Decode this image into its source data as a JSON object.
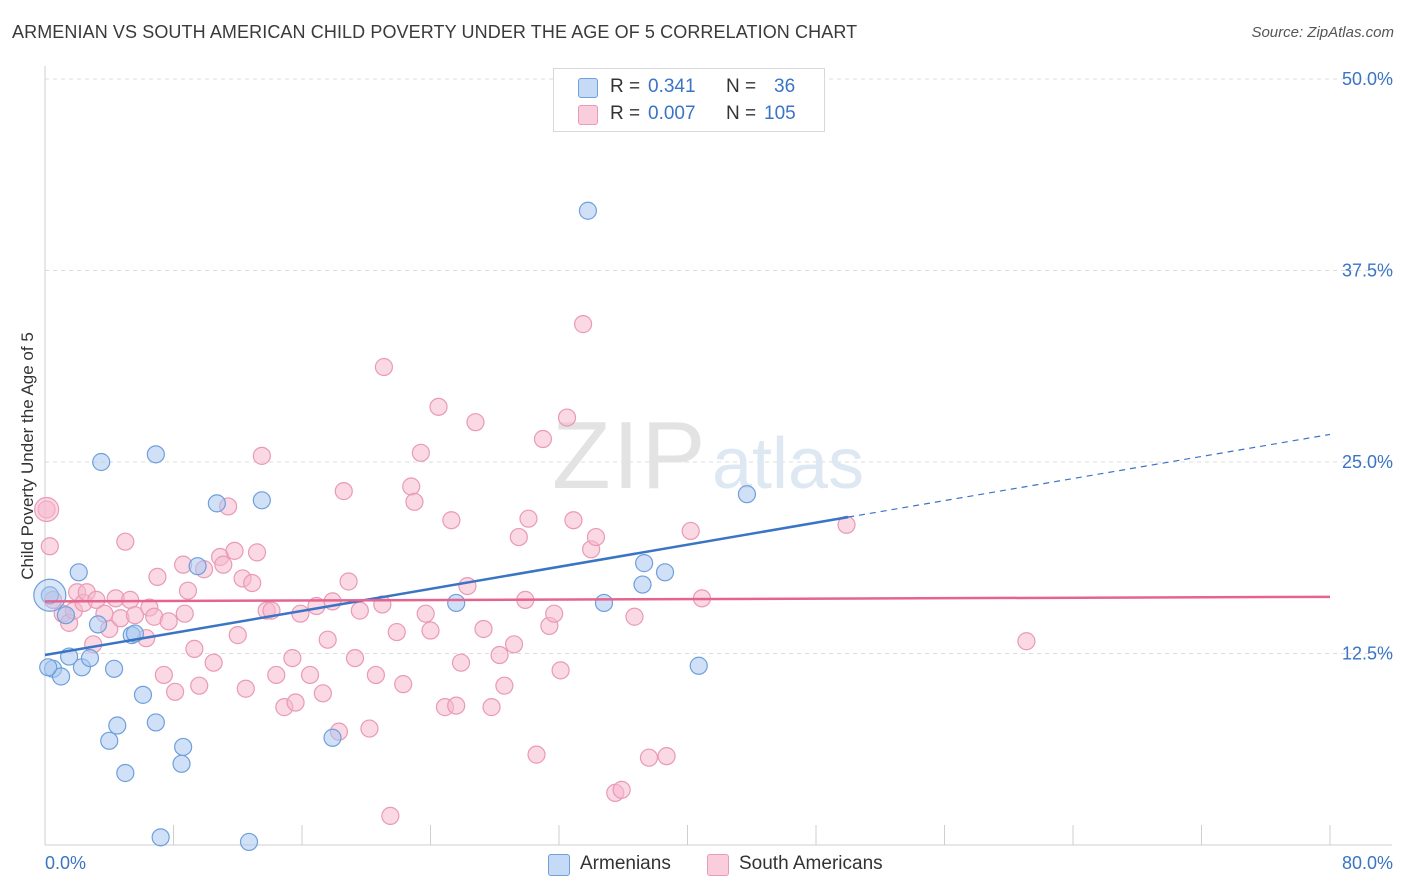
{
  "header": {
    "title": "ARMENIAN VS SOUTH AMERICAN CHILD POVERTY UNDER THE AGE OF 5 CORRELATION CHART",
    "source": "Source: ZipAtlas.com"
  },
  "watermark": {
    "part1": "ZIP",
    "part2": "atlas"
  },
  "legend": {
    "rows": [
      {
        "r_label": "R =",
        "r_value": "0.341",
        "n_label": "N =",
        "n_value": "36",
        "color": "#a9c8f0"
      },
      {
        "r_label": "R =",
        "r_value": "0.007",
        "n_label": "N =",
        "n_value": "105",
        "color": "#f6b8cd"
      }
    ]
  },
  "bottom_legend": [
    {
      "label": "Armenians",
      "color": "#a9c8f0"
    },
    {
      "label": "South Americans",
      "color": "#f6b8cd"
    }
  ],
  "chart_data": {
    "type": "scatter",
    "title": "ARMENIAN VS SOUTH AMERICAN CHILD POVERTY UNDER THE AGE OF 5 CORRELATION CHART",
    "xlabel": "",
    "ylabel": "Child Poverty Under the Age of 5",
    "xlim": [
      0,
      80
    ],
    "ylim": [
      0,
      50
    ],
    "x_tick_labels": [
      "0.0%",
      "80.0%"
    ],
    "y_ticks": [
      12.5,
      25.0,
      37.5,
      50.0
    ],
    "y_tick_labels": [
      "12.5%",
      "25.0%",
      "37.5%",
      "50.0%"
    ],
    "grid": "horizontal dashed",
    "series": [
      {
        "name": "Armenians",
        "color": "#a9c8f0",
        "stroke": "#6f9fdc",
        "points": [
          [
            0.3,
            16.3
          ],
          [
            0.5,
            11.5
          ],
          [
            1.0,
            11.0
          ],
          [
            1.3,
            15.0
          ],
          [
            1.5,
            12.3
          ],
          [
            2.1,
            17.8
          ],
          [
            2.3,
            11.6
          ],
          [
            2.8,
            12.2
          ],
          [
            3.3,
            14.4
          ],
          [
            3.5,
            25.0
          ],
          [
            4.3,
            11.5
          ],
          [
            4.5,
            7.8
          ],
          [
            4.0,
            6.8
          ],
          [
            5.0,
            4.7
          ],
          [
            5.4,
            13.7
          ],
          [
            5.6,
            13.8
          ],
          [
            6.1,
            9.8
          ],
          [
            6.9,
            25.5
          ],
          [
            6.9,
            8.0
          ],
          [
            7.2,
            0.5
          ],
          [
            8.5,
            5.3
          ],
          [
            8.6,
            6.4
          ],
          [
            9.5,
            18.2
          ],
          [
            10.7,
            22.3
          ],
          [
            12.7,
            0.2
          ],
          [
            13.5,
            22.5
          ],
          [
            17.9,
            7.0
          ],
          [
            25.6,
            15.8
          ],
          [
            33.8,
            41.4
          ],
          [
            34.8,
            15.8
          ],
          [
            37.2,
            17.0
          ],
          [
            37.3,
            18.4
          ],
          [
            38.6,
            17.8
          ],
          [
            40.7,
            11.7
          ],
          [
            43.7,
            22.9
          ],
          [
            0.2,
            11.6
          ]
        ],
        "trend": {
          "x0": 0,
          "y0": 12.4,
          "x1": 50,
          "y1": 21.4,
          "dash_to_x": 80,
          "dash_to_y": 26.8,
          "color": "#3a74c4"
        }
      },
      {
        "name": "South Americans",
        "color": "#f6b8cd",
        "stroke": "#e99ab5",
        "points": [
          [
            0.1,
            21.9
          ],
          [
            0.3,
            19.5
          ],
          [
            0.5,
            16.0
          ],
          [
            1.1,
            15.1
          ],
          [
            1.5,
            14.5
          ],
          [
            1.8,
            15.3
          ],
          [
            2.0,
            16.5
          ],
          [
            2.4,
            15.8
          ],
          [
            2.6,
            16.5
          ],
          [
            3.0,
            13.1
          ],
          [
            3.2,
            16.0
          ],
          [
            3.7,
            15.1
          ],
          [
            4.0,
            14.1
          ],
          [
            4.4,
            16.1
          ],
          [
            4.7,
            14.8
          ],
          [
            5.0,
            19.8
          ],
          [
            5.3,
            16.0
          ],
          [
            5.6,
            15.0
          ],
          [
            6.3,
            13.5
          ],
          [
            6.5,
            15.5
          ],
          [
            6.8,
            14.9
          ],
          [
            7.0,
            17.5
          ],
          [
            7.4,
            11.1
          ],
          [
            7.7,
            14.6
          ],
          [
            8.1,
            10.0
          ],
          [
            8.6,
            18.3
          ],
          [
            8.9,
            16.6
          ],
          [
            8.7,
            15.1
          ],
          [
            9.3,
            12.8
          ],
          [
            9.6,
            10.4
          ],
          [
            9.9,
            18.0
          ],
          [
            10.5,
            11.9
          ],
          [
            10.9,
            18.8
          ],
          [
            11.1,
            18.3
          ],
          [
            11.4,
            22.1
          ],
          [
            11.8,
            19.2
          ],
          [
            12.3,
            17.4
          ],
          [
            12.0,
            13.7
          ],
          [
            12.5,
            10.2
          ],
          [
            12.9,
            17.1
          ],
          [
            13.2,
            19.1
          ],
          [
            13.5,
            25.4
          ],
          [
            13.8,
            15.3
          ],
          [
            14.1,
            15.3
          ],
          [
            14.4,
            11.1
          ],
          [
            14.9,
            9.0
          ],
          [
            15.4,
            12.2
          ],
          [
            15.6,
            9.3
          ],
          [
            15.9,
            15.1
          ],
          [
            16.5,
            11.1
          ],
          [
            16.9,
            15.6
          ],
          [
            17.3,
            9.9
          ],
          [
            17.6,
            13.4
          ],
          [
            17.9,
            15.9
          ],
          [
            18.3,
            7.4
          ],
          [
            18.6,
            23.1
          ],
          [
            18.9,
            17.2
          ],
          [
            19.3,
            12.2
          ],
          [
            19.6,
            15.3
          ],
          [
            20.2,
            7.6
          ],
          [
            20.6,
            11.1
          ],
          [
            21.0,
            15.7
          ],
          [
            21.5,
            1.9
          ],
          [
            21.1,
            31.2
          ],
          [
            21.9,
            13.9
          ],
          [
            22.3,
            10.5
          ],
          [
            22.8,
            23.4
          ],
          [
            23.0,
            22.4
          ],
          [
            23.4,
            25.6
          ],
          [
            23.7,
            15.1
          ],
          [
            24.0,
            14.0
          ],
          [
            24.5,
            28.6
          ],
          [
            24.9,
            9.0
          ],
          [
            25.3,
            21.2
          ],
          [
            25.6,
            9.1
          ],
          [
            25.9,
            11.9
          ],
          [
            26.3,
            16.9
          ],
          [
            26.8,
            27.6
          ],
          [
            27.3,
            14.1
          ],
          [
            27.8,
            9.0
          ],
          [
            28.3,
            12.4
          ],
          [
            28.6,
            10.4
          ],
          [
            29.2,
            13.1
          ],
          [
            29.5,
            20.1
          ],
          [
            29.9,
            16.0
          ],
          [
            30.1,
            21.3
          ],
          [
            30.6,
            5.9
          ],
          [
            31.0,
            26.5
          ],
          [
            31.4,
            14.3
          ],
          [
            31.7,
            15.1
          ],
          [
            32.1,
            11.4
          ],
          [
            32.5,
            27.9
          ],
          [
            32.9,
            21.2
          ],
          [
            33.5,
            34.0
          ],
          [
            34.0,
            19.3
          ],
          [
            34.3,
            20.1
          ],
          [
            35.5,
            3.4
          ],
          [
            35.9,
            3.6
          ],
          [
            36.7,
            14.9
          ],
          [
            37.6,
            5.7
          ],
          [
            38.7,
            5.8
          ],
          [
            40.2,
            20.5
          ],
          [
            40.9,
            16.1
          ],
          [
            49.9,
            20.9
          ],
          [
            61.1,
            13.3
          ]
        ],
        "trend": {
          "x0": 0,
          "y0": 15.9,
          "x1": 80,
          "y1": 16.2,
          "color": "#e5648f"
        }
      }
    ]
  }
}
